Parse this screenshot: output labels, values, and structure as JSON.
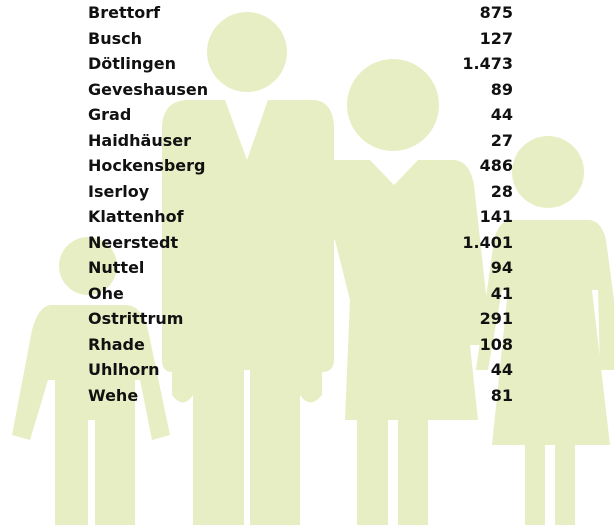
{
  "table": {
    "rows": [
      [
        "Brettorf",
        "875"
      ],
      [
        "Busch",
        "127"
      ],
      [
        "Dötlingen",
        "1.473"
      ],
      [
        "Geveshausen",
        "89"
      ],
      [
        "Grad",
        "44"
      ],
      [
        "Haidhäuser",
        "27"
      ],
      [
        "Hockensberg",
        "486"
      ],
      [
        "Iserloy",
        "28"
      ],
      [
        "Klattenhof",
        "141"
      ],
      [
        "Neerstedt",
        "1.401"
      ],
      [
        "Nuttel",
        "94"
      ],
      [
        "Ohe",
        "41"
      ],
      [
        "Ostrittrum",
        "291"
      ],
      [
        "Rhade",
        "108"
      ],
      [
        "Uhlhorn",
        "44"
      ],
      [
        "Wehe",
        "81"
      ]
    ]
  }
}
